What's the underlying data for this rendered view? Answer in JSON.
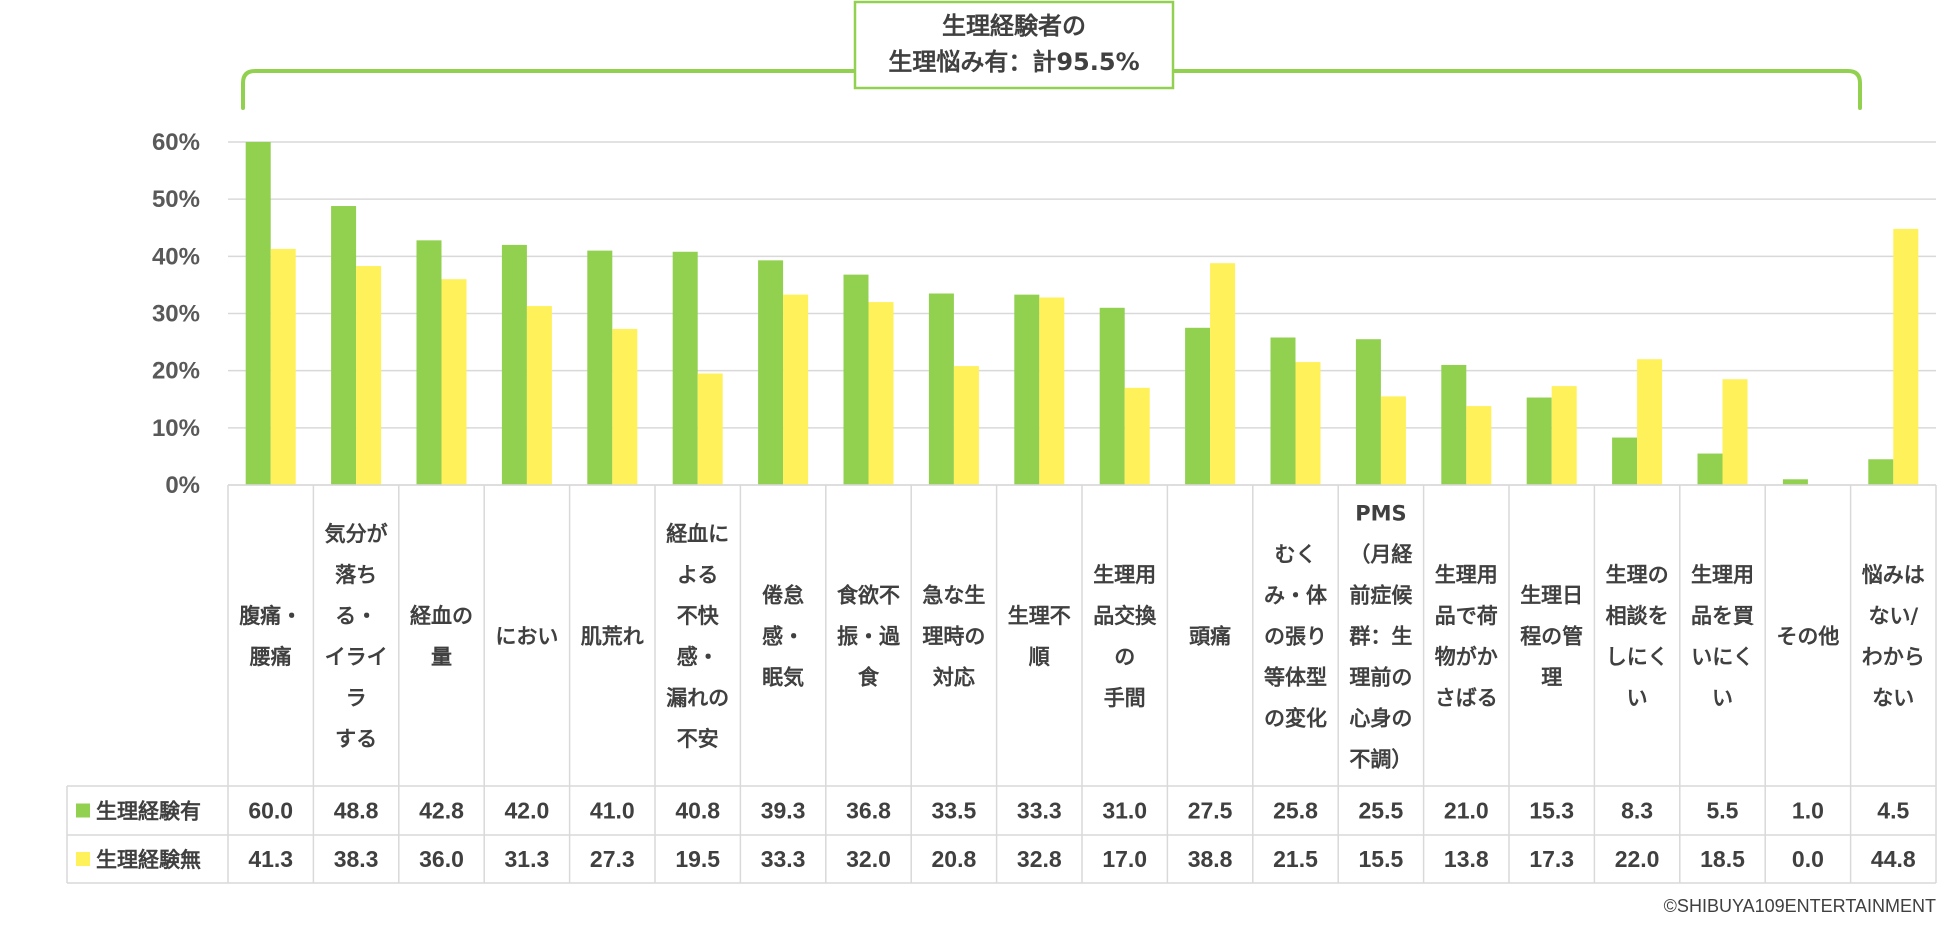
{
  "chart_data": {
    "type": "bar",
    "categories": [
      [
        "腹痛・",
        "腰痛"
      ],
      [
        "気分が",
        "落ち",
        "る・",
        "イライ",
        "ラ",
        "する"
      ],
      [
        "経血の",
        "量"
      ],
      [
        "におい"
      ],
      [
        "肌荒れ"
      ],
      [
        "経血に",
        "よる",
        "不快",
        "感・",
        "漏れの",
        "不安"
      ],
      [
        "倦怠",
        "感・",
        "眠気"
      ],
      [
        "食欲不",
        "振・過",
        "食"
      ],
      [
        "急な生",
        "理時の",
        "対応"
      ],
      [
        "生理不",
        "順"
      ],
      [
        "生理用",
        "品交換",
        "の",
        "手間"
      ],
      [
        "頭痛"
      ],
      [
        "むく",
        "み・体",
        "の張り",
        "等体型",
        "の変化"
      ],
      [
        "PMS",
        "（月経",
        "前症候",
        "群：生",
        "理前の",
        "心身の",
        "不調）"
      ],
      [
        "生理用",
        "品で荷",
        "物がか",
        "さばる"
      ],
      [
        "生理日",
        "程の管",
        "理"
      ],
      [
        "生理の",
        "相談を",
        "しにく",
        "い"
      ],
      [
        "生理用",
        "品を買",
        "いにく",
        "い"
      ],
      [
        "その他"
      ],
      [
        "悩みは",
        "ない/",
        "わから",
        "ない"
      ]
    ],
    "series": [
      {
        "name": "生理経験有",
        "color": "#92D050",
        "values": [
          60.0,
          48.8,
          42.8,
          42.0,
          41.0,
          40.8,
          39.3,
          36.8,
          33.5,
          33.3,
          31.0,
          27.5,
          25.8,
          25.5,
          21.0,
          15.3,
          8.3,
          5.5,
          1.0,
          4.5
        ],
        "labels": [
          "60.0",
          "48.8",
          "42.8",
          "42.0",
          "41.0",
          "40.8",
          "39.3",
          "36.8",
          "33.5",
          "33.3",
          "31.0",
          "27.5",
          "25.8",
          "25.5",
          "21.0",
          "15.3",
          "8.3",
          "5.5",
          "1.0",
          "4.5"
        ]
      },
      {
        "name": "生理経験無",
        "color": "#FFF159",
        "values": [
          41.3,
          38.3,
          36.0,
          31.3,
          27.3,
          19.5,
          33.3,
          32.0,
          20.8,
          32.8,
          17.0,
          38.8,
          21.5,
          15.5,
          13.8,
          17.3,
          22.0,
          18.5,
          0.0,
          44.8
        ],
        "labels": [
          "41.3",
          "38.3",
          "36.0",
          "31.3",
          "27.3",
          "19.5",
          "33.3",
          "32.0",
          "20.8",
          "32.8",
          "17.0",
          "38.8",
          "21.5",
          "15.5",
          "13.8",
          "17.3",
          "22.0",
          "18.5",
          "0.0",
          "44.8"
        ]
      }
    ],
    "ylim": [
      0,
      60
    ],
    "yticks": [
      "0%",
      "10%",
      "20%",
      "30%",
      "40%",
      "50%",
      "60%"
    ],
    "grid": true,
    "legend": "data-table",
    "annotation": [
      "生理経験者の",
      "生理悩み有：計95.5%"
    ],
    "xlabel": "",
    "ylabel": ""
  },
  "copyright": "©SHIBUYA109ENTERTAINMENT"
}
